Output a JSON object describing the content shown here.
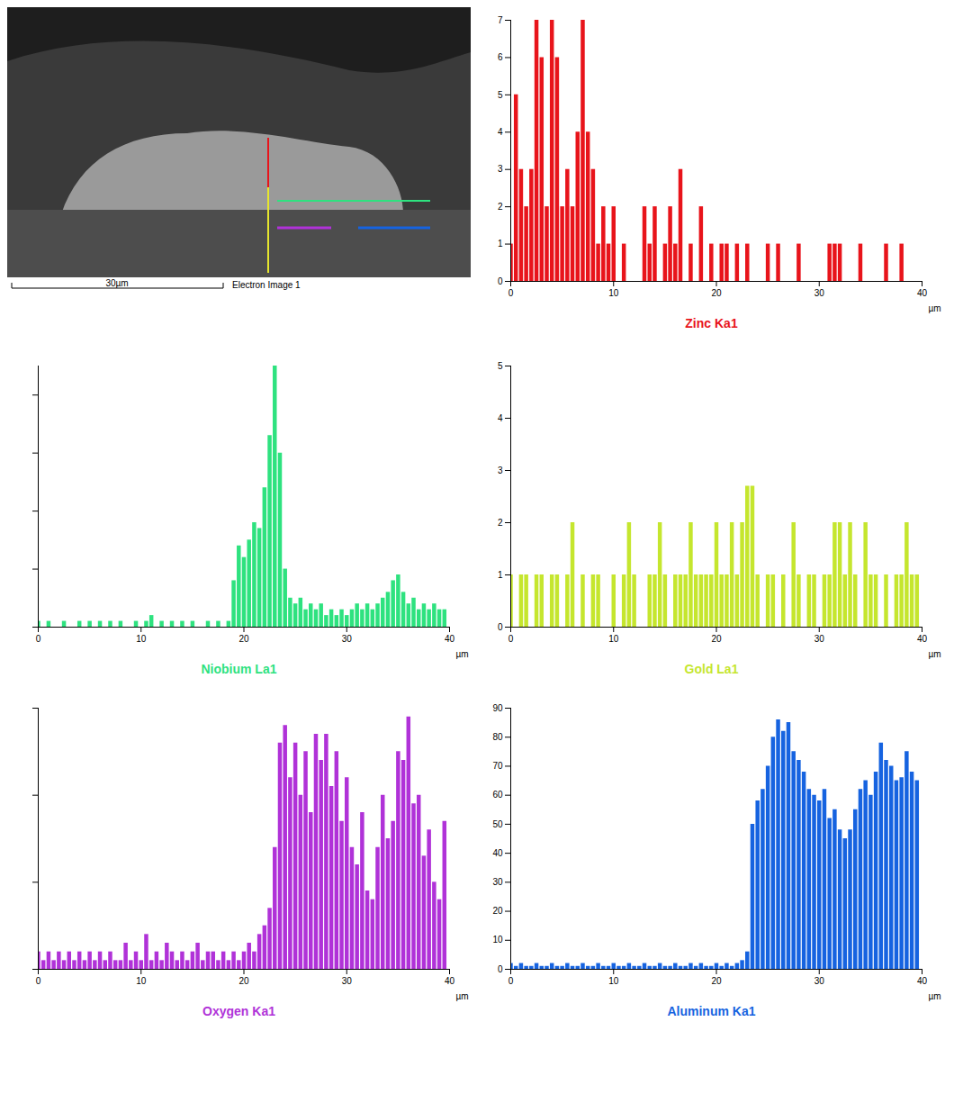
{
  "image": {
    "scale_bar": "30µm",
    "caption": "Electron Image 1"
  },
  "chart_data": [
    {
      "type": "bar",
      "title": "Zinc Ka1",
      "color": "#e8141b",
      "x_label": "µm",
      "xlim": [
        0,
        40
      ],
      "xticks": [
        0,
        10,
        20,
        30,
        40
      ],
      "ylim": [
        0,
        7
      ],
      "yticks": [
        0,
        1,
        2,
        3,
        4,
        5,
        6,
        7
      ],
      "x": [
        0,
        0.5,
        1,
        1.5,
        2,
        2.5,
        3,
        3.5,
        4,
        4.5,
        5,
        5.5,
        6,
        6.5,
        7,
        7.5,
        8,
        8.5,
        9,
        9.5,
        10,
        10.5,
        11,
        11.5,
        12,
        12.5,
        13,
        13.5,
        14,
        14.5,
        15,
        15.5,
        16,
        16.5,
        17,
        17.5,
        18,
        18.5,
        19,
        19.5,
        20,
        20.5,
        21,
        21.5,
        22,
        22.5,
        23,
        23.5,
        24,
        24.5,
        25,
        25.5,
        26,
        26.5,
        27,
        27.5,
        28,
        28.5,
        29,
        29.5,
        30,
        30.5,
        31,
        31.5,
        32,
        32.5,
        33,
        33.5,
        34,
        34.5,
        35,
        35.5,
        36,
        36.5,
        37,
        37.5,
        38,
        38.5,
        39,
        39.5
      ],
      "values": [
        1,
        5,
        3,
        2,
        3,
        7,
        6,
        2,
        7,
        6,
        2,
        3,
        2,
        4,
        7,
        4,
        3,
        1,
        2,
        1,
        2,
        0,
        1,
        0,
        0,
        0,
        2,
        1,
        2,
        0,
        1,
        2,
        1,
        3,
        0,
        1,
        0,
        2,
        0,
        1,
        0,
        1,
        1,
        0,
        1,
        0,
        1,
        0,
        0,
        0,
        1,
        0,
        1,
        0,
        0,
        0,
        1,
        0,
        0,
        0,
        0,
        0,
        1,
        1,
        1,
        0,
        0,
        0,
        1,
        0,
        0,
        0,
        0,
        1,
        0,
        0,
        1,
        0,
        0,
        0
      ]
    },
    {
      "type": "bar",
      "title": "Niobium La1",
      "color": "#2ee27f",
      "x_label": "µm",
      "tick_labels": "x",
      "xlim": [
        0,
        40
      ],
      "xticks": [
        0,
        10,
        20,
        30,
        40
      ],
      "ylim": [
        0,
        45
      ],
      "yticks": [
        0,
        10,
        20,
        30,
        40
      ],
      "x": [
        0,
        0.5,
        1,
        1.5,
        2,
        2.5,
        3,
        3.5,
        4,
        4.5,
        5,
        5.5,
        6,
        6.5,
        7,
        7.5,
        8,
        8.5,
        9,
        9.5,
        10,
        10.5,
        11,
        11.5,
        12,
        12.5,
        13,
        13.5,
        14,
        14.5,
        15,
        15.5,
        16,
        16.5,
        17,
        17.5,
        18,
        18.5,
        19,
        19.5,
        20,
        20.5,
        21,
        21.5,
        22,
        22.5,
        23,
        23.5,
        24,
        24.5,
        25,
        25.5,
        26,
        26.5,
        27,
        27.5,
        28,
        28.5,
        29,
        29.5,
        30,
        30.5,
        31,
        31.5,
        32,
        32.5,
        33,
        33.5,
        34,
        34.5,
        35,
        35.5,
        36,
        36.5,
        37,
        37.5,
        38,
        38.5,
        39,
        39.5
      ],
      "values": [
        1,
        0,
        1,
        0,
        0,
        1,
        0,
        0,
        1,
        0,
        1,
        0,
        1,
        0,
        1,
        0,
        1,
        0,
        0,
        1,
        0,
        1,
        2,
        0,
        1,
        0,
        1,
        0,
        1,
        0,
        1,
        0,
        0,
        1,
        0,
        1,
        0,
        1,
        8,
        14,
        12,
        15,
        18,
        17,
        24,
        33,
        45,
        30,
        10,
        5,
        4,
        5,
        3,
        4,
        3,
        4,
        2,
        3,
        2,
        3,
        2,
        3,
        4,
        3,
        4,
        3,
        4,
        5,
        6,
        8,
        9,
        6,
        4,
        5,
        3,
        4,
        3,
        4,
        3,
        3
      ]
    },
    {
      "type": "bar",
      "title": "Gold La1",
      "color": "#c5e62e",
      "x_label": "µm",
      "xlim": [
        0,
        40
      ],
      "xticks": [
        0,
        10,
        20,
        30,
        40
      ],
      "ylim": [
        0,
        5
      ],
      "yticks": [
        0,
        1,
        2,
        3,
        4,
        5
      ],
      "x": [
        0,
        0.5,
        1,
        1.5,
        2,
        2.5,
        3,
        3.5,
        4,
        4.5,
        5,
        5.5,
        6,
        6.5,
        7,
        7.5,
        8,
        8.5,
        9,
        9.5,
        10,
        10.5,
        11,
        11.5,
        12,
        12.5,
        13,
        13.5,
        14,
        14.5,
        15,
        15.5,
        16,
        16.5,
        17,
        17.5,
        18,
        18.5,
        19,
        19.5,
        20,
        20.5,
        21,
        21.5,
        22,
        22.5,
        23,
        23.5,
        24,
        24.5,
        25,
        25.5,
        26,
        26.5,
        27,
        27.5,
        28,
        28.5,
        29,
        29.5,
        30,
        30.5,
        31,
        31.5,
        32,
        32.5,
        33,
        33.5,
        34,
        34.5,
        35,
        35.5,
        36,
        36.5,
        37,
        37.5,
        38,
        38.5,
        39,
        39.5
      ],
      "values": [
        1,
        0,
        1,
        1,
        0,
        1,
        1,
        0,
        1,
        1,
        0,
        1,
        2,
        0,
        1,
        0,
        1,
        1,
        0,
        0,
        1,
        0,
        1,
        2,
        1,
        0,
        0,
        1,
        1,
        2,
        1,
        0,
        1,
        1,
        1,
        2,
        1,
        1,
        1,
        1,
        2,
        1,
        1,
        2,
        1,
        2,
        2.7,
        2.7,
        1,
        0,
        1,
        1,
        0,
        1,
        0,
        2,
        1,
        0,
        1,
        1,
        0,
        1,
        1,
        2,
        2,
        1,
        2,
        1,
        0,
        2,
        1,
        1,
        0,
        1,
        0,
        1,
        1,
        2,
        1,
        1
      ]
    },
    {
      "type": "bar",
      "title": "Oxygen Ka1",
      "color": "#b032d8",
      "x_label": "µm",
      "tick_labels": "x",
      "xlim": [
        0,
        40
      ],
      "xticks": [
        0,
        10,
        20,
        30,
        40
      ],
      "ylim": [
        0,
        30
      ],
      "yticks": [
        0,
        10,
        20,
        30
      ],
      "x": [
        0,
        0.5,
        1,
        1.5,
        2,
        2.5,
        3,
        3.5,
        4,
        4.5,
        5,
        5.5,
        6,
        6.5,
        7,
        7.5,
        8,
        8.5,
        9,
        9.5,
        10,
        10.5,
        11,
        11.5,
        12,
        12.5,
        13,
        13.5,
        14,
        14.5,
        15,
        15.5,
        16,
        16.5,
        17,
        17.5,
        18,
        18.5,
        19,
        19.5,
        20,
        20.5,
        21,
        21.5,
        22,
        22.5,
        23,
        23.5,
        24,
        24.5,
        25,
        25.5,
        26,
        26.5,
        27,
        27.5,
        28,
        28.5,
        29,
        29.5,
        30,
        30.5,
        31,
        31.5,
        32,
        32.5,
        33,
        33.5,
        34,
        34.5,
        35,
        35.5,
        36,
        36.5,
        37,
        37.5,
        38,
        38.5,
        39,
        39.5
      ],
      "values": [
        2,
        1,
        2,
        1,
        2,
        1,
        2,
        1,
        2,
        1,
        2,
        1,
        2,
        1,
        2,
        1,
        1,
        3,
        1,
        2,
        1,
        4,
        1,
        2,
        1,
        3,
        2,
        1,
        2,
        1,
        2,
        3,
        1,
        2,
        2,
        1,
        2,
        1,
        2,
        1,
        2,
        3,
        2,
        4,
        5,
        7,
        14,
        26,
        28,
        22,
        26,
        20,
        25,
        18,
        27,
        24,
        27,
        21,
        25,
        17,
        22,
        14,
        12,
        18,
        9,
        8,
        14,
        20,
        15,
        17,
        25,
        24,
        29,
        19,
        20,
        13,
        16,
        10,
        8,
        17
      ]
    },
    {
      "type": "bar",
      "title": "Aluminum Ka1",
      "color": "#1663e0",
      "x_label": "µm",
      "xlim": [
        0,
        40
      ],
      "xticks": [
        0,
        10,
        20,
        30,
        40
      ],
      "ylim": [
        0,
        90
      ],
      "yticks": [
        0,
        10,
        20,
        30,
        40,
        50,
        60,
        70,
        80,
        90
      ],
      "x": [
        0,
        0.5,
        1,
        1.5,
        2,
        2.5,
        3,
        3.5,
        4,
        4.5,
        5,
        5.5,
        6,
        6.5,
        7,
        7.5,
        8,
        8.5,
        9,
        9.5,
        10,
        10.5,
        11,
        11.5,
        12,
        12.5,
        13,
        13.5,
        14,
        14.5,
        15,
        15.5,
        16,
        16.5,
        17,
        17.5,
        18,
        18.5,
        19,
        19.5,
        20,
        20.5,
        21,
        21.5,
        22,
        22.5,
        23,
        23.5,
        24,
        24.5,
        25,
        25.5,
        26,
        26.5,
        27,
        27.5,
        28,
        28.5,
        29,
        29.5,
        30,
        30.5,
        31,
        31.5,
        32,
        32.5,
        33,
        33.5,
        34,
        34.5,
        35,
        35.5,
        36,
        36.5,
        37,
        37.5,
        38,
        38.5,
        39,
        39.5
      ],
      "values": [
        2,
        1,
        2,
        1,
        1,
        2,
        1,
        1,
        2,
        1,
        1,
        2,
        1,
        1,
        2,
        1,
        1,
        2,
        1,
        1,
        2,
        1,
        1,
        2,
        1,
        1,
        2,
        1,
        1,
        2,
        1,
        1,
        2,
        1,
        1,
        2,
        1,
        2,
        1,
        1,
        2,
        1,
        2,
        1,
        2,
        3,
        6,
        50,
        58,
        62,
        70,
        80,
        86,
        82,
        85,
        75,
        72,
        68,
        62,
        60,
        58,
        62,
        52,
        55,
        48,
        45,
        48,
        55,
        62,
        65,
        60,
        68,
        78,
        72,
        70,
        65,
        66,
        75,
        68,
        65
      ]
    }
  ]
}
